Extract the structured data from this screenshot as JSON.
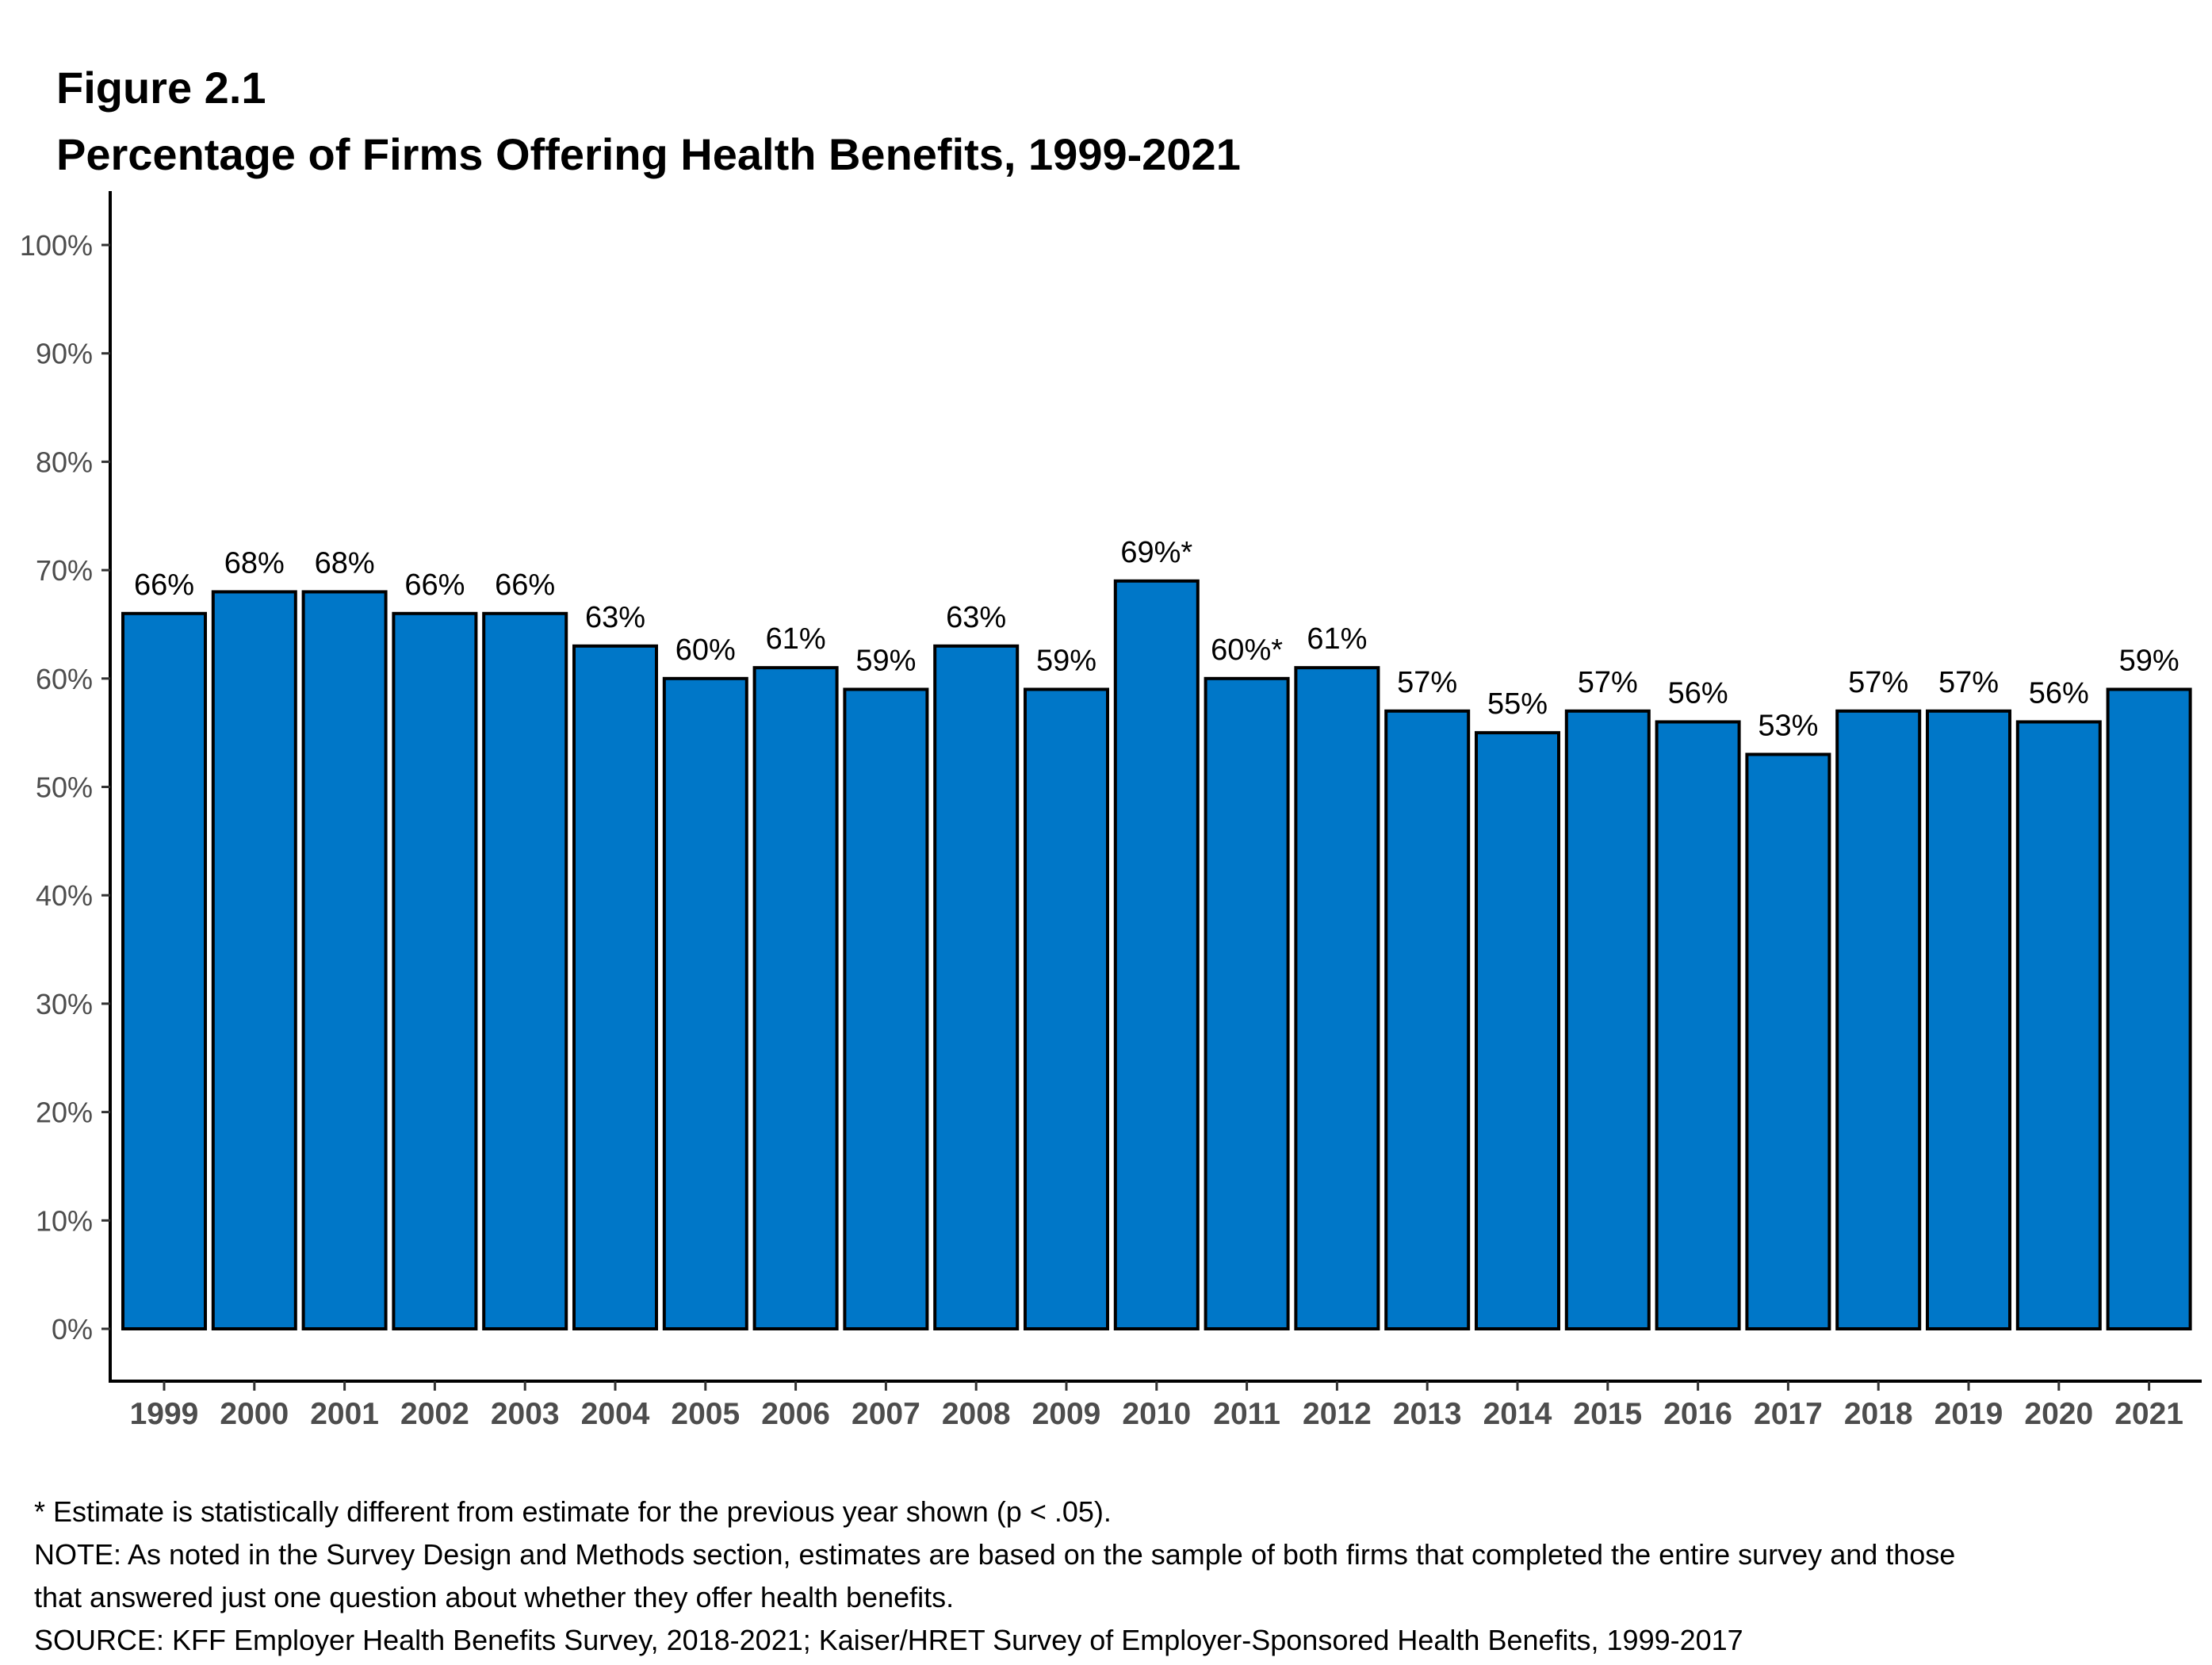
{
  "chart_data": {
    "type": "bar",
    "figure_label": "Figure 2.1",
    "title": "Percentage of Firms Offering Health Benefits, 1999-2021",
    "xlabel": "",
    "ylabel": "",
    "ylim": [
      0,
      100
    ],
    "yticks": [
      "0%",
      "10%",
      "20%",
      "30%",
      "40%",
      "50%",
      "60%",
      "70%",
      "80%",
      "90%",
      "100%"
    ],
    "grid": false,
    "categories": [
      "1999",
      "2000",
      "2001",
      "2002",
      "2003",
      "2004",
      "2005",
      "2006",
      "2007",
      "2008",
      "2009",
      "2010",
      "2011",
      "2012",
      "2013",
      "2014",
      "2015",
      "2016",
      "2017",
      "2018",
      "2019",
      "2020",
      "2021"
    ],
    "values": [
      66,
      68,
      68,
      66,
      66,
      63,
      60,
      61,
      59,
      63,
      59,
      69,
      60,
      61,
      57,
      55,
      57,
      56,
      53,
      57,
      57,
      56,
      59
    ],
    "data_labels": [
      "66%",
      "68%",
      "68%",
      "66%",
      "66%",
      "63%",
      "60%",
      "61%",
      "59%",
      "63%",
      "59%",
      "69%*",
      "60%*",
      "61%",
      "57%",
      "55%",
      "57%",
      "56%",
      "53%",
      "57%",
      "57%",
      "56%",
      "59%"
    ],
    "bar_color": "#0077C8",
    "bar_outline_color": "#000000"
  },
  "notes": [
    "* Estimate is statistically different from estimate for the previous year shown (p < .05).",
    "NOTE: As noted in the Survey Design and Methods section, estimates are based on the sample of both firms that completed the entire survey and those",
    "that answered just one question about whether they offer health benefits.",
    "SOURCE: KFF Employer Health Benefits Survey, 2018-2021; Kaiser/HRET Survey of Employer-Sponsored Health Benefits, 1999-2017"
  ]
}
